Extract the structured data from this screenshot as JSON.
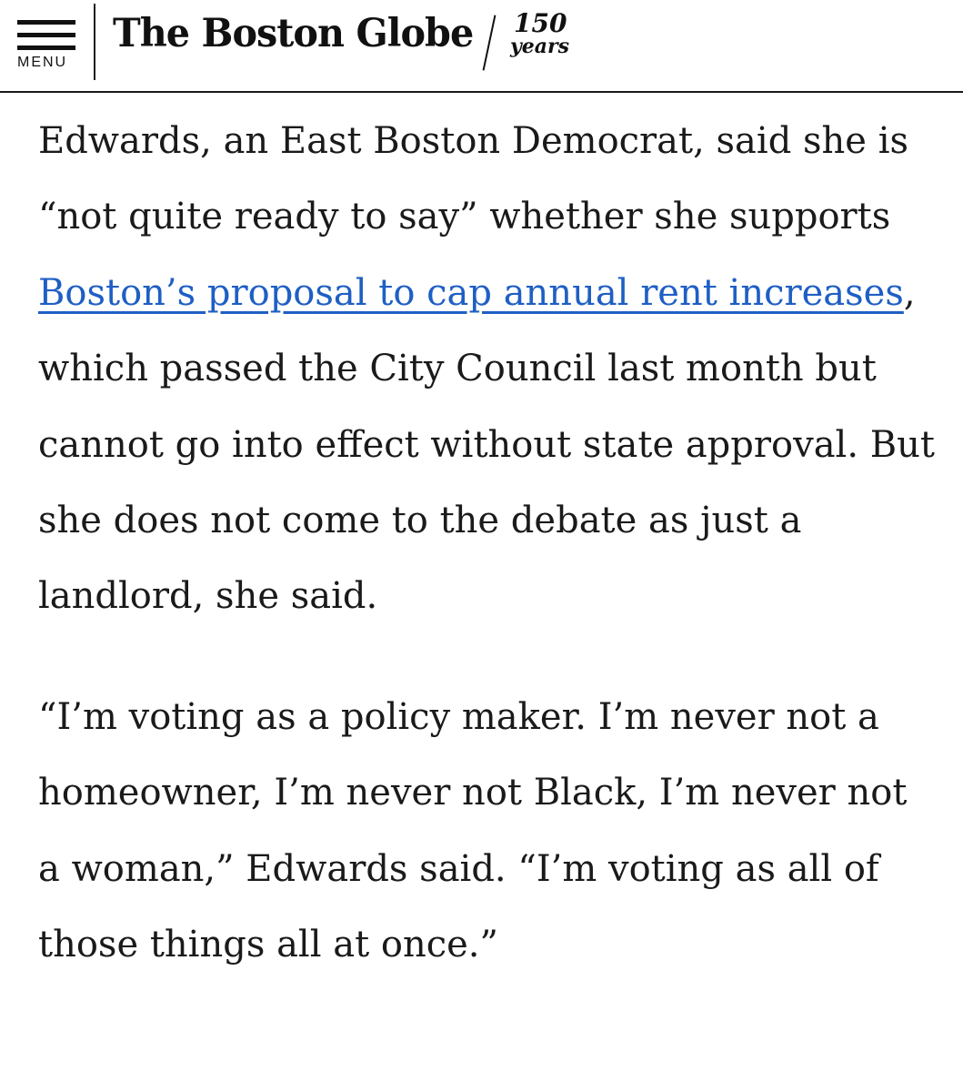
{
  "header": {
    "menu_label": "MENU",
    "logo_text": "The Boston Globe",
    "logo_anniversary_number": "150",
    "logo_anniversary_word": "years"
  },
  "article": {
    "paragraph_1": {
      "text_before_link": "Edwards, an East Boston Democrat, said she is “not quite ready to say” whether she supports ",
      "link_text": "Boston’s proposal to cap annual rent increases",
      "text_after_link": ", which passed the City Council last month but cannot go into effect without state approval. But she does not come to the debate as just a landlord, she said."
    },
    "paragraph_2": {
      "text": "“I’m voting as a policy maker. I’m never not a homeowner, I’m never not Black, I’m never not a woman,” Edwards said. “I’m voting as all of those things all at once.”"
    }
  },
  "colors": {
    "link": "#1f5fc4",
    "text": "#1a1a1a",
    "background": "#ffffff"
  }
}
